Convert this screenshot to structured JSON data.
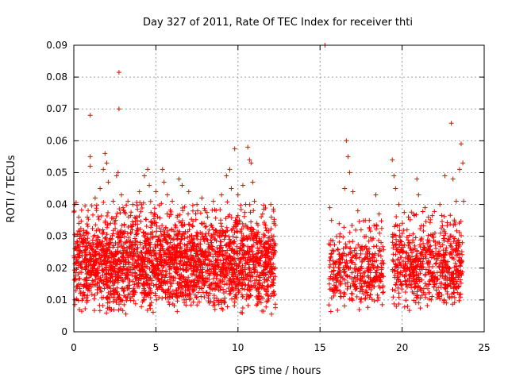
{
  "chart_data": {
    "type": "scatter",
    "title": "Day 327 of 2011, Rate Of TEC Index for receiver thti",
    "xlabel": "GPS time / hours",
    "ylabel": "ROTI / TECUs",
    "xlim": [
      0,
      25
    ],
    "ylim": [
      0,
      0.09
    ],
    "x_ticks": [
      "0",
      "5",
      "10",
      "15",
      "20",
      "25"
    ],
    "y_ticks": [
      "0",
      "0.01",
      "0.02",
      "0.03",
      "0.04",
      "0.05",
      "0.06",
      "0.07",
      "0.08",
      "0.09"
    ],
    "grid": true,
    "marker": "plus",
    "color": "#ff0000",
    "clusters": [
      {
        "x_range": [
          0.0,
          12.3
        ],
        "y_range": [
          0.005,
          0.041
        ],
        "count": 2600
      },
      {
        "x_range": [
          15.5,
          18.9
        ],
        "y_range": [
          0.005,
          0.035
        ],
        "count": 400
      },
      {
        "x_range": [
          19.4,
          23.7
        ],
        "y_range": [
          0.006,
          0.038
        ],
        "count": 650
      }
    ],
    "series": [
      {
        "values": [
          [
            0.05,
            0.04
          ],
          [
            0.3,
            0.036
          ],
          [
            0.6,
            0.031
          ],
          [
            0.8,
            0.027
          ],
          [
            1.0,
            0.068
          ],
          [
            1.0,
            0.055
          ],
          [
            1.0,
            0.052
          ],
          [
            1.3,
            0.042
          ],
          [
            1.6,
            0.045
          ],
          [
            1.8,
            0.051
          ],
          [
            1.9,
            0.056
          ],
          [
            2.0,
            0.053
          ],
          [
            2.1,
            0.047
          ],
          [
            2.4,
            0.041
          ],
          [
            2.6,
            0.049
          ],
          [
            2.7,
            0.05
          ],
          [
            2.75,
            0.0815
          ],
          [
            2.75,
            0.07
          ],
          [
            2.9,
            0.043
          ],
          [
            3.0,
            0.039
          ],
          [
            3.3,
            0.041
          ],
          [
            3.6,
            0.04
          ],
          [
            4.0,
            0.044
          ],
          [
            4.3,
            0.049
          ],
          [
            4.5,
            0.051
          ],
          [
            4.6,
            0.046
          ],
          [
            5.0,
            0.044
          ],
          [
            5.4,
            0.051
          ],
          [
            5.5,
            0.047
          ],
          [
            5.7,
            0.043
          ],
          [
            6.0,
            0.041
          ],
          [
            6.4,
            0.048
          ],
          [
            6.6,
            0.046
          ],
          [
            7.0,
            0.044
          ],
          [
            7.5,
            0.04
          ],
          [
            7.8,
            0.042
          ],
          [
            8.0,
            0.038
          ],
          [
            8.5,
            0.041
          ],
          [
            9.0,
            0.043
          ],
          [
            9.3,
            0.049
          ],
          [
            9.5,
            0.051
          ],
          [
            9.6,
            0.045
          ],
          [
            9.8,
            0.0575
          ],
          [
            10.0,
            0.043
          ],
          [
            10.3,
            0.046
          ],
          [
            10.6,
            0.058
          ],
          [
            10.7,
            0.054
          ],
          [
            10.8,
            0.053
          ],
          [
            10.9,
            0.047
          ],
          [
            11.0,
            0.041
          ],
          [
            11.5,
            0.037
          ],
          [
            12.0,
            0.04
          ],
          [
            12.2,
            0.034
          ],
          [
            15.3,
            0.09
          ],
          [
            15.6,
            0.039
          ],
          [
            15.7,
            0.035
          ],
          [
            16.2,
            0.03
          ],
          [
            16.5,
            0.045
          ],
          [
            16.6,
            0.06
          ],
          [
            16.7,
            0.055
          ],
          [
            16.8,
            0.05
          ],
          [
            17.0,
            0.044
          ],
          [
            17.3,
            0.038
          ],
          [
            17.5,
            0.032
          ],
          [
            17.8,
            0.03
          ],
          [
            18.0,
            0.035
          ],
          [
            18.4,
            0.043
          ],
          [
            18.6,
            0.037
          ],
          [
            19.4,
            0.054
          ],
          [
            19.5,
            0.049
          ],
          [
            19.6,
            0.045
          ],
          [
            19.8,
            0.04
          ],
          [
            20.3,
            0.032
          ],
          [
            20.7,
            0.037
          ],
          [
            20.9,
            0.048
          ],
          [
            21.0,
            0.043
          ],
          [
            21.4,
            0.039
          ],
          [
            21.6,
            0.036
          ],
          [
            22.0,
            0.031
          ],
          [
            22.3,
            0.04
          ],
          [
            22.6,
            0.049
          ],
          [
            23.0,
            0.0655
          ],
          [
            23.1,
            0.048
          ],
          [
            23.3,
            0.041
          ],
          [
            23.5,
            0.051
          ],
          [
            23.6,
            0.059
          ],
          [
            23.7,
            0.053
          ],
          [
            23.75,
            0.041
          ]
        ]
      }
    ]
  }
}
